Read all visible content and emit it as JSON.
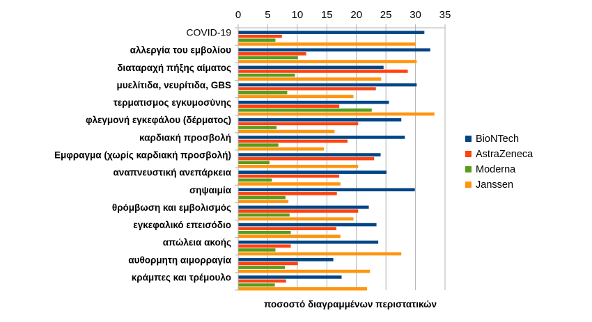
{
  "chart_data": {
    "type": "bar",
    "orientation": "horizontal",
    "title": "",
    "xlabel": "ποσοστό διαγραμμένων περιστατικών",
    "ylabel": "",
    "xlim": [
      0,
      35
    ],
    "xticks": [
      0,
      5,
      10,
      15,
      20,
      25,
      30,
      35
    ],
    "xaxis_position": "top",
    "grid": "vertical",
    "legend_position": "right",
    "categories": [
      "COVID-19",
      "αλλεργία του εμβολίου",
      "διαταραχή πήξης αίματος",
      "μυελίτιδα, νευρίτιδα, GBS",
      "τερματισμος εγκυμοσύνης",
      "φλεγμονή εγκεφάλου (δέρματος)",
      "καρδιακή προσβολή",
      "Εμφραγμα (χωρίς καρδιακή προσβολή)",
      "αναπνευστική ανεπάρκεια",
      "σηψαιμία",
      "θρόμβωση και εμβολισμός",
      "εγκεφαλικό επεισόδιο",
      "απώλεια ακοής",
      "αυθορμητη αιμορραγία",
      "κράμπες και τρέμουλο"
    ],
    "series": [
      {
        "name": "BioNTech",
        "color": "#004586",
        "values": [
          31.5,
          32.5,
          24.6,
          30.2,
          25.5,
          27.6,
          28.2,
          24.1,
          25.1,
          29.9,
          22.1,
          23.4,
          23.7,
          16.1,
          17.5
        ]
      },
      {
        "name": "AstraZeneca",
        "color": "#FF420E",
        "values": [
          7.4,
          11.5,
          28.7,
          23.3,
          17.1,
          20.3,
          18.5,
          23.0,
          17.1,
          16.7,
          20.3,
          16.6,
          8.9,
          10.1,
          8.1
        ]
      },
      {
        "name": "Moderna",
        "color": "#579D1C",
        "values": [
          6.3,
          10.1,
          9.6,
          8.3,
          22.6,
          6.5,
          6.8,
          5.3,
          5.7,
          8.0,
          8.7,
          8.9,
          6.3,
          7.9,
          6.2
        ]
      },
      {
        "name": "Janssen",
        "color": "#FF950E",
        "values": [
          30.0,
          30.2,
          24.2,
          19.5,
          33.2,
          16.3,
          14.5,
          20.3,
          17.3,
          8.5,
          19.5,
          17.3,
          27.6,
          22.3,
          21.8
        ]
      }
    ]
  }
}
